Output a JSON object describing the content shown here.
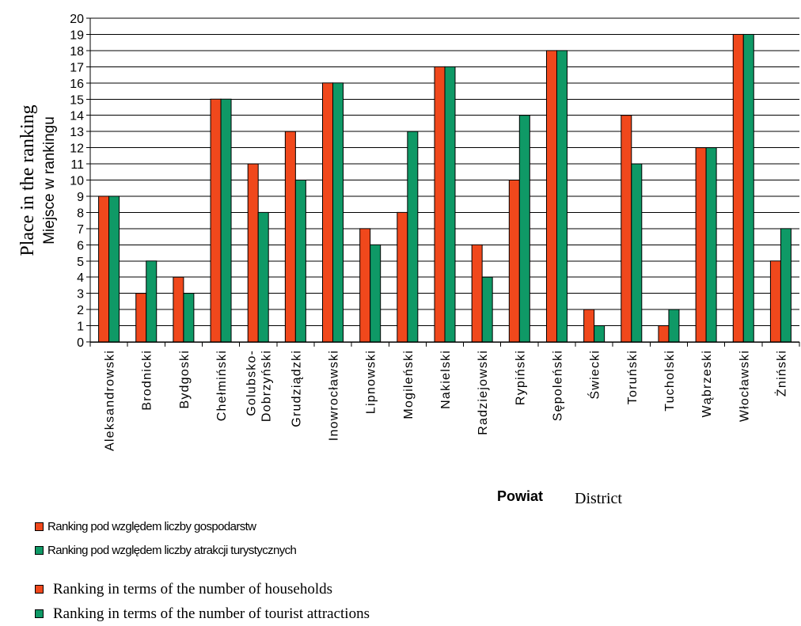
{
  "chart_data": {
    "type": "bar",
    "title": "",
    "ylabel_en": "Place in the ranking",
    "ylabel_pl": "Miejsce w rankingu",
    "xlabel_pl": "Powiat",
    "xlabel_en": "District",
    "ylim": [
      0,
      20
    ],
    "yticks": [
      0,
      1,
      2,
      3,
      4,
      5,
      6,
      7,
      8,
      9,
      10,
      11,
      12,
      13,
      14,
      15,
      16,
      17,
      18,
      19,
      20
    ],
    "grid": true,
    "legend_position": "bottom-left",
    "categories": [
      [
        "Aleksandrowski"
      ],
      [
        "Brodnicki"
      ],
      [
        "Bydgoski"
      ],
      [
        "Chełmiński"
      ],
      [
        "Golubsko-",
        "Dobrzyński"
      ],
      [
        "Grudziądzki"
      ],
      [
        "Inowrocławski"
      ],
      [
        "Lipnowski"
      ],
      [
        "Mogileński"
      ],
      [
        "Nakielski"
      ],
      [
        "Radziejowski"
      ],
      [
        "Rypiński"
      ],
      [
        "Sępoleński"
      ],
      [
        "Świecki"
      ],
      [
        "Toruński"
      ],
      [
        "Tucholski"
      ],
      [
        "Wąbrzeski"
      ],
      [
        "Włocławski"
      ],
      [
        "Żniński"
      ]
    ],
    "series": [
      {
        "name": "Ranking pod względem liczby gospodarstw",
        "color": "#f0481c",
        "values": [
          9,
          3,
          4,
          15,
          11,
          13,
          16,
          7,
          8,
          17,
          6,
          10,
          18,
          2,
          14,
          1,
          12,
          19,
          5
        ]
      },
      {
        "name": "Ranking pod względem liczby atrakcji turystycznych",
        "color": "#0f9966",
        "values": [
          9,
          5,
          3,
          15,
          8,
          10,
          16,
          6,
          13,
          17,
          4,
          14,
          18,
          1,
          11,
          2,
          12,
          19,
          7
        ]
      }
    ]
  },
  "legend": {
    "pl": [
      {
        "label": "Ranking pod względem liczby gospodarstw",
        "color": "#f0481c"
      },
      {
        "label": "Ranking pod względem liczby atrakcji turystycznych",
        "color": "#0f9966"
      }
    ],
    "en": [
      {
        "label": "Ranking in terms of the number of households",
        "color": "#f0481c"
      },
      {
        "label": "Ranking in terms of the number of tourist attractions",
        "color": "#0f9966"
      }
    ]
  }
}
